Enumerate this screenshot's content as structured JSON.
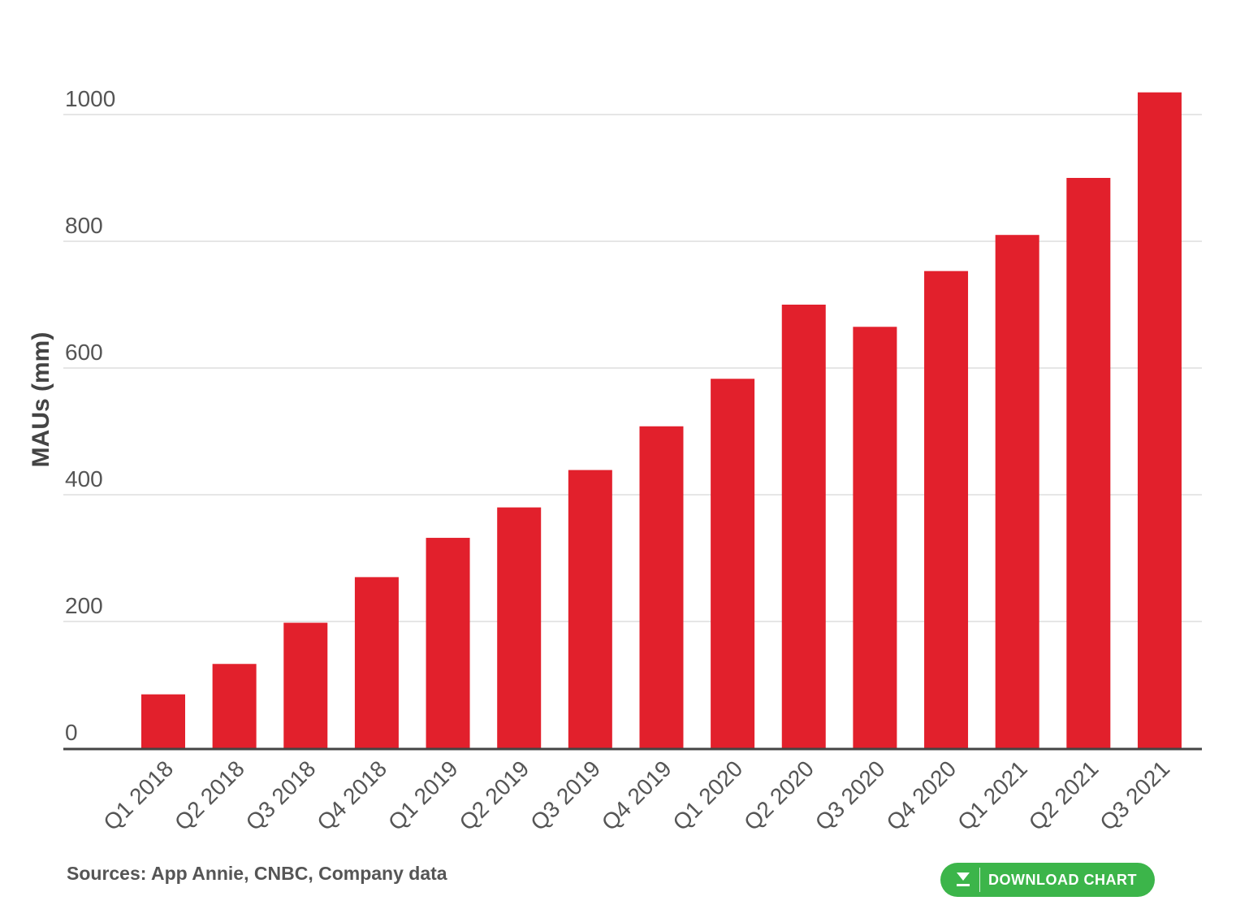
{
  "chart_data": {
    "type": "bar",
    "title": "",
    "xlabel": "",
    "ylabel": "MAUs (mm)",
    "ylim": [
      0,
      1000
    ],
    "yticks": [
      0,
      200,
      400,
      600,
      800,
      1000
    ],
    "grid": true,
    "bar_color": "#e2202c",
    "categories": [
      "Q1 2018",
      "Q2 2018",
      "Q3 2018",
      "Q4 2018",
      "Q1 2019",
      "Q2 2019",
      "Q3 2019",
      "Q4 2019",
      "Q1 2020",
      "Q2 2020",
      "Q3 2020",
      "Q4 2020",
      "Q1 2021",
      "Q2 2021",
      "Q3 2021"
    ],
    "values": [
      85,
      133,
      198,
      270,
      332,
      380,
      439,
      508,
      583,
      700,
      665,
      753,
      810,
      900,
      1035
    ]
  },
  "source_note": "Sources: App Annie, CNBC, Company data",
  "download_button": {
    "label": "DOWNLOAD CHART",
    "icon": "download-icon",
    "color": "#3cb54a"
  }
}
